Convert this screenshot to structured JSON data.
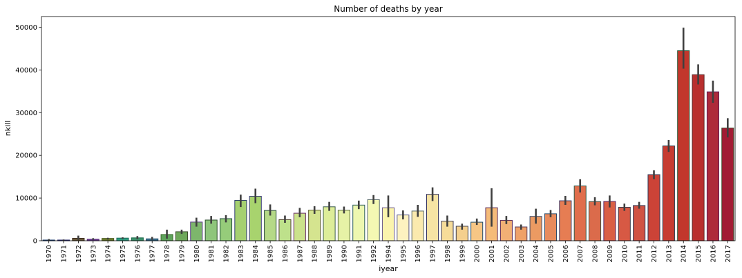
{
  "chart_data": {
    "type": "bar",
    "title": "Number of deaths by year",
    "xlabel": "iyear",
    "ylabel": "nkill",
    "ylim": [
      0,
      52500
    ],
    "yticks": [
      0,
      10000,
      20000,
      30000,
      40000,
      50000
    ],
    "grid": false,
    "categories": [
      "1970",
      "1971",
      "1972",
      "1973",
      "1974",
      "1975",
      "1976",
      "1977",
      "1978",
      "1979",
      "1980",
      "1981",
      "1982",
      "1983",
      "1984",
      "1985",
      "1986",
      "1987",
      "1988",
      "1989",
      "1990",
      "1991",
      "1992",
      "1994",
      "1995",
      "1996",
      "1997",
      "1998",
      "1999",
      "2000",
      "2001",
      "2002",
      "2003",
      "2004",
      "2005",
      "2006",
      "2007",
      "2008",
      "2009",
      "2010",
      "2011",
      "2012",
      "2013",
      "2014",
      "2015",
      "2016",
      "2017"
    ],
    "values": [
      170,
      170,
      560,
      370,
      540,
      620,
      680,
      450,
      1460,
      2110,
      4380,
      4850,
      5170,
      9460,
      10420,
      7090,
      4950,
      6450,
      7170,
      7950,
      7150,
      8350,
      9620,
      7730,
      6040,
      6960,
      10880,
      4600,
      3400,
      4350,
      7730,
      4780,
      3230,
      5700,
      6320,
      9360,
      12840,
      9160,
      9210,
      7830,
      8250,
      15480,
      22210,
      44500,
      38880,
      34870,
      26400
    ],
    "ci_low": [
      0,
      0,
      200,
      200,
      300,
      400,
      400,
      200,
      500,
      1600,
      3300,
      4000,
      4300,
      7900,
      8800,
      5900,
      4200,
      5500,
      6300,
      7000,
      6400,
      7400,
      8600,
      5500,
      5000,
      5600,
      9300,
      3300,
      2600,
      3700,
      3300,
      3900,
      2600,
      4000,
      5500,
      8400,
      11300,
      8300,
      7800,
      7000,
      7500,
      14400,
      20800,
      40300,
      36600,
      32300,
      24200
    ],
    "ci_high": [
      400,
      300,
      1200,
      600,
      700,
      800,
      1100,
      900,
      2600,
      2600,
      5400,
      5800,
      6000,
      10800,
      12200,
      8500,
      5900,
      7700,
      8100,
      9100,
      8000,
      9400,
      10700,
      10600,
      7100,
      8400,
      12500,
      5900,
      4000,
      5200,
      12300,
      5800,
      3800,
      7500,
      7200,
      10500,
      14400,
      10200,
      10600,
      8700,
      9100,
      16500,
      23600,
      49900,
      41300,
      37500,
      28700
    ],
    "colors": [
      "#306e8d",
      "#455e8c",
      "#6b5a3c",
      "#6a3f8f",
      "#6a7a2c",
      "#2f9d80",
      "#3c8f6a",
      "#3a6f8a",
      "#5ea35b",
      "#6ea85a",
      "#7db66c",
      "#8ec57b",
      "#96cc7a",
      "#a5d070",
      "#a8d36e",
      "#b5d987",
      "#bee18b",
      "#cbe28b",
      "#d5e48f",
      "#dded99",
      "#e6f2a6",
      "#edf7b0",
      "#f4f8b3",
      "#fbf4ad",
      "#fdf2c0",
      "#fbeaae",
      "#f6e4a4",
      "#f6dc99",
      "#f4cf8d",
      "#f6c685",
      "#f5bb79",
      "#f2b075",
      "#efa168",
      "#eb9a62",
      "#e88b5d",
      "#e67d53",
      "#e06e4c",
      "#db6b4b",
      "#da5f45",
      "#d75944",
      "#d15243",
      "#cc4337",
      "#c73c32",
      "#c2372c",
      "#b92f2e",
      "#ae2a3a",
      "#a21c34"
    ],
    "edge_colors": [
      "#1f3e6b",
      "#2a2a6a",
      "#3a2a1a",
      "#5a2a7a",
      "#4a5a1a",
      "#1a6a5a",
      "#1a6a4a",
      "#1a4a6a",
      "#3a6a2a",
      "#3a4a2a",
      "#5a3a8a",
      "#2a4a2a",
      "#1a4a3a",
      "#2a3a6a",
      "#3a3a7a",
      "#2a4a3a",
      "#4a3a2a",
      "#6a2a6a",
      "#5a5a2a",
      "#3a5a4a",
      "#5a6a3a",
      "#2a5a5a",
      "#5a6a6a",
      "#6a5a8a",
      "#5a5a8a",
      "#5a6a6a",
      "#2a2a5a",
      "#3a3a5a",
      "#3a3a4a",
      "#1a4a6a",
      "#5a2a5a",
      "#5a2a5a",
      "#5a3a5a",
      "#3a4a6a",
      "#2a4a6a",
      "#3a3a6a",
      "#2a5a4a",
      "#3a4a3a",
      "#5a2a6a",
      "#3a3a4a",
      "#2a3a5a",
      "#2a3a5a",
      "#2a3a4a",
      "#2a5a3a",
      "#5a2a2a",
      "#5a1a5a",
      "#3a4a2a"
    ]
  }
}
